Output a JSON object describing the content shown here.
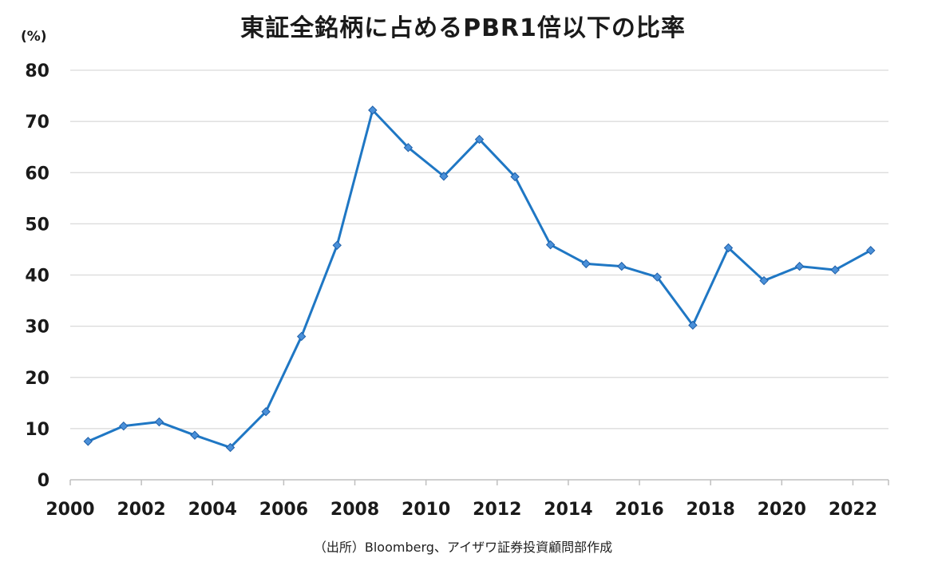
{
  "chart_data": {
    "type": "line",
    "title": "東証全銘柄に占めるPBR1倍以下の比率",
    "unit_label": "(%)",
    "source": "（出所）Bloomberg、アイザワ証券投資顧問部作成",
    "xlabel": "",
    "ylabel": "",
    "ylim": [
      0,
      80
    ],
    "y_ticks": [
      0,
      10,
      20,
      30,
      40,
      50,
      60,
      70,
      80
    ],
    "x_tick_labels": [
      "2000",
      "2002",
      "2004",
      "2006",
      "2008",
      "2010",
      "2012",
      "2014",
      "2016",
      "2018",
      "2020",
      "2022"
    ],
    "grid": true,
    "line_color": "#1f77c4",
    "marker_color": "#4a90d9",
    "series": [
      {
        "x": [
          2000,
          2001,
          2002,
          2003,
          2004,
          2005,
          2006,
          2007,
          2008,
          2009,
          2010,
          2011,
          2012,
          2013,
          2014,
          2015,
          2016,
          2017,
          2018,
          2019,
          2020,
          2021,
          2022
        ],
        "values": [
          7.5,
          10.5,
          11.3,
          8.7,
          6.3,
          13.3,
          28.0,
          45.8,
          72.2,
          64.9,
          59.3,
          66.5,
          59.2,
          45.9,
          42.2,
          41.7,
          39.6,
          30.2,
          45.3,
          38.9,
          41.7,
          41.0,
          44.8
        ]
      }
    ]
  }
}
